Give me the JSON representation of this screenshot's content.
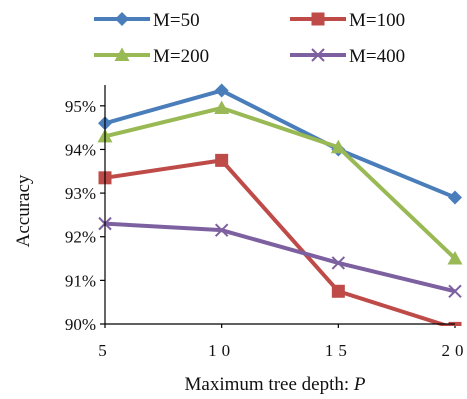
{
  "chart_data": {
    "type": "line",
    "x": [
      5,
      10,
      15,
      20
    ],
    "x_tick_labels": [
      "5",
      "10",
      "15",
      "20"
    ],
    "y_tick_labels": [
      "90%",
      "91%",
      "92%",
      "93%",
      "94%",
      "95%"
    ],
    "y_ticks": [
      90,
      91,
      92,
      93,
      94,
      95
    ],
    "ylim": [
      90,
      95.5
    ],
    "xlabel": "Maximum tree depth: ",
    "xlabel_var": "P",
    "ylabel": "Accuracy",
    "grid": false,
    "legend_position": "top",
    "series": [
      {
        "name": "M=50",
        "color": "#4a7ebb",
        "marker": "diamond",
        "values": [
          94.6,
          95.35,
          94.0,
          92.9
        ]
      },
      {
        "name": "M=100",
        "color": "#be4b48",
        "marker": "square",
        "values": [
          93.35,
          93.75,
          90.75,
          89.9
        ]
      },
      {
        "name": "M=200",
        "color": "#98b954",
        "marker": "triangle",
        "values": [
          94.3,
          94.95,
          94.05,
          91.5
        ]
      },
      {
        "name": "M=400",
        "color": "#7d60a0",
        "marker": "x",
        "values": [
          92.3,
          92.15,
          91.4,
          90.75
        ]
      }
    ]
  }
}
